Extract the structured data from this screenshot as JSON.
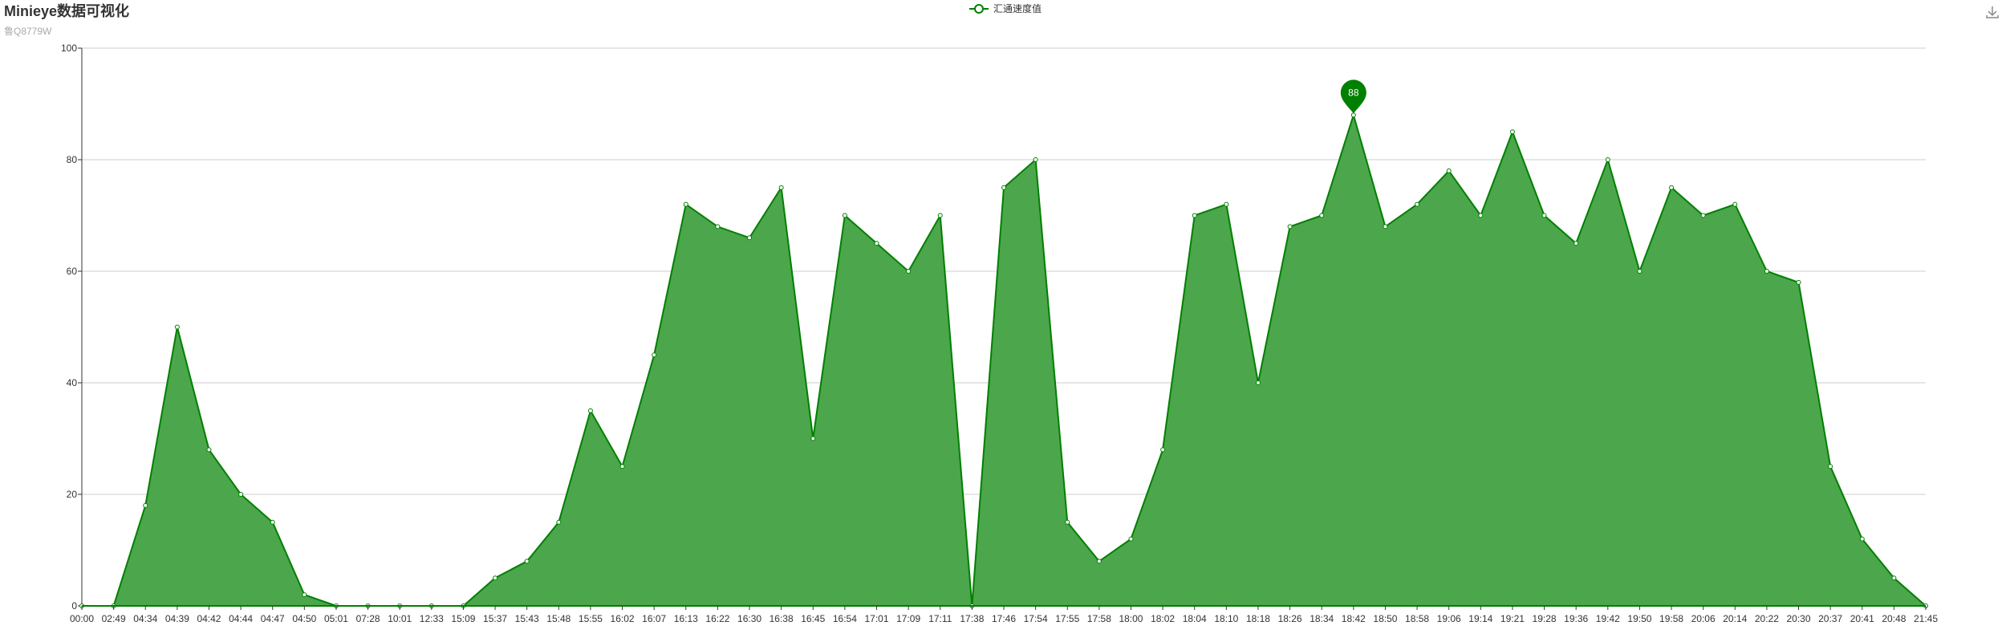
{
  "header": {
    "title": "Minieye数据可视化",
    "subtitle": "鲁Q8779W"
  },
  "legend": {
    "label": "汇通速度值"
  },
  "toolbox": {
    "icon": "download-icon"
  },
  "colors": {
    "series": "#008000",
    "area": "#4ca64c",
    "axis": "#333333",
    "grid": "#cccccc"
  },
  "chart_data": {
    "type": "area",
    "title": "Minieye数据可视化",
    "subtitle": "鲁Q8779W",
    "xlabel": "",
    "ylabel": "",
    "ylim": [
      0,
      100
    ],
    "yticks": [
      0,
      20,
      40,
      60,
      80,
      100
    ],
    "grid": true,
    "legend_position": "top-center",
    "x": [
      "00:00",
      "02:49",
      "04:34",
      "04:39",
      "04:42",
      "04:44",
      "04:47",
      "04:50",
      "05:01",
      "07:28",
      "10:01",
      "12:33",
      "15:09",
      "15:37",
      "15:43",
      "15:48",
      "15:55",
      "16:02",
      "16:07",
      "16:13",
      "16:22",
      "16:30",
      "16:38",
      "16:45",
      "16:54",
      "17:01",
      "17:09",
      "17:11",
      "17:38",
      "17:46",
      "17:54",
      "17:55",
      "17:58",
      "18:00",
      "18:02",
      "18:04",
      "18:10",
      "18:18",
      "18:26",
      "18:34",
      "18:42",
      "18:50",
      "18:58",
      "19:06",
      "19:14",
      "19:21",
      "19:28",
      "19:36",
      "19:42",
      "19:50",
      "19:58",
      "20:06",
      "20:14",
      "20:22",
      "20:30",
      "20:37",
      "20:41",
      "20:48",
      "21:45"
    ],
    "series": [
      {
        "name": "汇通速度值",
        "values": [
          0,
          0,
          18,
          50,
          28,
          20,
          15,
          2,
          0,
          0,
          0,
          0,
          0,
          5,
          8,
          15,
          35,
          25,
          45,
          72,
          68,
          66,
          75,
          30,
          70,
          65,
          60,
          70,
          0,
          75,
          80,
          15,
          8,
          12,
          28,
          70,
          72,
          40,
          68,
          70,
          88,
          68,
          72,
          78,
          70,
          85,
          70,
          65,
          80,
          60,
          75,
          70,
          72,
          60,
          58,
          25,
          12,
          5,
          0
        ]
      }
    ],
    "mark_point": {
      "label": "88",
      "value": 88,
      "x": "18:42"
    }
  }
}
